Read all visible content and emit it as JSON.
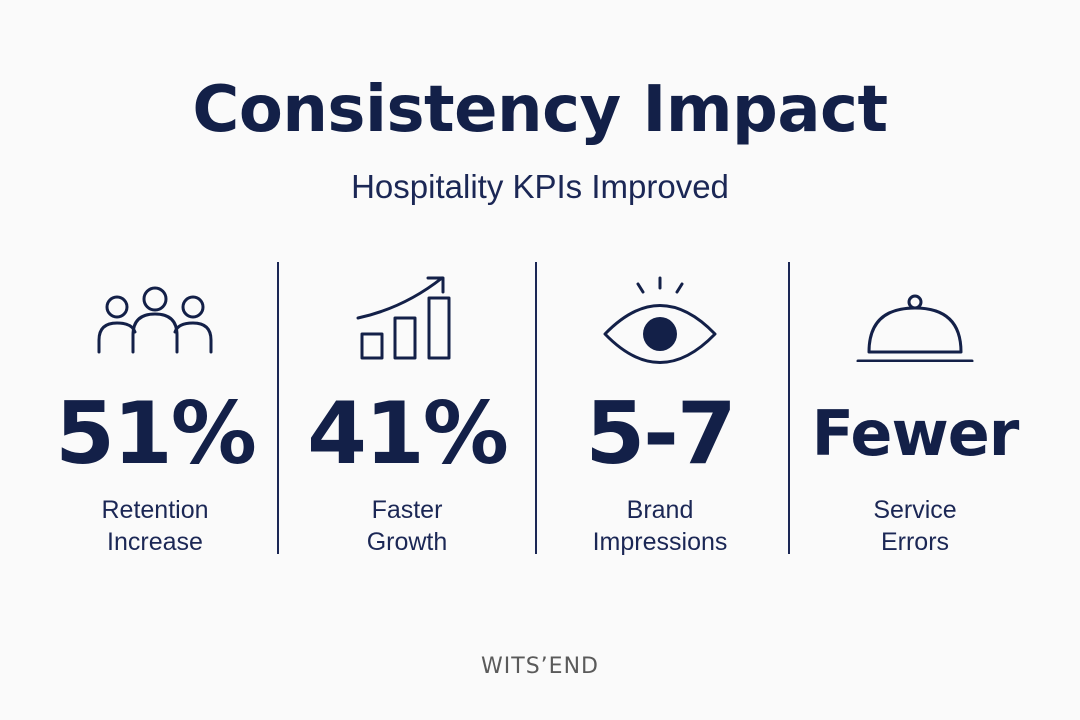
{
  "header": {
    "title": "Consistency Impact",
    "subtitle": "Hospitality KPIs Improved"
  },
  "stats": [
    {
      "icon": "people-group-icon",
      "value": "51%",
      "label_line1": "Retention",
      "label_line2": "Increase"
    },
    {
      "icon": "growth-chart-icon",
      "value": "41%",
      "label_line1": "Faster",
      "label_line2": "Growth"
    },
    {
      "icon": "eye-icon",
      "value": "5-7",
      "label_line1": "Brand",
      "label_line2": "Impressions"
    },
    {
      "icon": "cloche-icon",
      "value": "Fewer",
      "label_line1": "Service",
      "label_line2": "Errors"
    }
  ],
  "footer": {
    "logo": "WITS’END"
  },
  "colors": {
    "navy": "#132048",
    "background": "#FAFAFA",
    "logo_gray": "#5A5A5A"
  }
}
